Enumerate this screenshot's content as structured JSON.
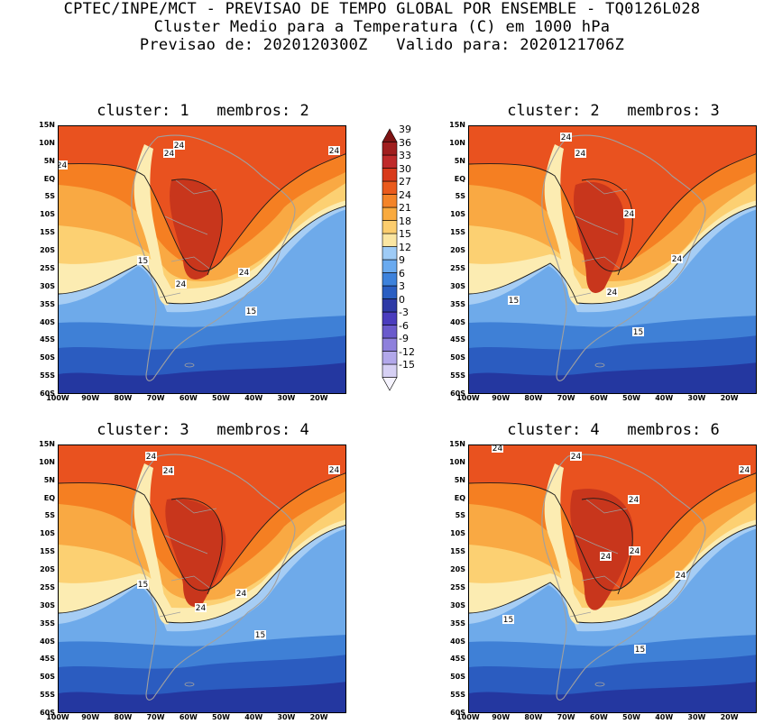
{
  "header": {
    "line1": "CPTEC/INPE/MCT - PREVISAO DE TEMPO GLOBAL POR ENSEMBLE - TQ0126L028",
    "line2": "Cluster Medio para a Temperatura (C) em 1000 hPa",
    "line3": "Previsao de: 2020120300Z   Valido para: 2020121706Z"
  },
  "panels": [
    {
      "title": "cluster: 1   membros: 2",
      "contour_labels": [
        "24",
        "24",
        "24",
        "24",
        "24",
        "15",
        "15",
        "24"
      ]
    },
    {
      "title": "cluster: 2   membros: 3",
      "contour_labels": [
        "24",
        "24",
        "24",
        "24",
        "15",
        "15",
        "24"
      ]
    },
    {
      "title": "cluster: 3   membros: 4",
      "contour_labels": [
        "24",
        "24",
        "24",
        "24",
        "15",
        "15",
        "24"
      ]
    },
    {
      "title": "cluster: 4   membros: 6",
      "contour_labels": [
        "24",
        "24",
        "24",
        "24",
        "24",
        "24",
        "15",
        "15",
        "24"
      ]
    }
  ],
  "axes": {
    "lat_labels": [
      "15N",
      "10N",
      "5N",
      "EQ",
      "5S",
      "10S",
      "15S",
      "20S",
      "25S",
      "30S",
      "35S",
      "40S",
      "45S",
      "50S",
      "55S",
      "60S"
    ],
    "lon_labels": [
      "100W",
      "90W",
      "80W",
      "70W",
      "60W",
      "50W",
      "40W",
      "30W",
      "20W"
    ]
  },
  "colorbar": {
    "labels": [
      "39",
      "36",
      "33",
      "30",
      "27",
      "24",
      "21",
      "18",
      "15",
      "12",
      "9",
      "6",
      "3",
      "0",
      "-3",
      "-6",
      "-9",
      "-12",
      "-15"
    ],
    "colors": [
      "#f6f4ff",
      "#d6d0f4",
      "#b2a8ea",
      "#8e80dc",
      "#6a5acc",
      "#4a3cbe",
      "#2e3aa6",
      "#2a5ec2",
      "#3d82dc",
      "#6aaaef",
      "#9ecbf6",
      "#fbe6a2",
      "#fccd6e",
      "#f9aa3e",
      "#f48428",
      "#ea5a1c",
      "#d83a1a",
      "#bf2a2a",
      "#a01e1e",
      "#7e1414"
    ]
  },
  "colors": {
    "deep_red": "#c8361c",
    "red_orange": "#e9521f",
    "orange": "#f57f22",
    "light_orange": "#f9a943",
    "yellow": "#fcd072",
    "pale": "#fcecb2",
    "light_blue": "#a6cdf4",
    "blue": "#6eaaea",
    "mid_blue": "#3f80d6",
    "dark_blue": "#2b5cc0",
    "deep_blue": "#2437a0",
    "indigo": "#4a3cbe",
    "land_outline": "#a0a0a0"
  }
}
